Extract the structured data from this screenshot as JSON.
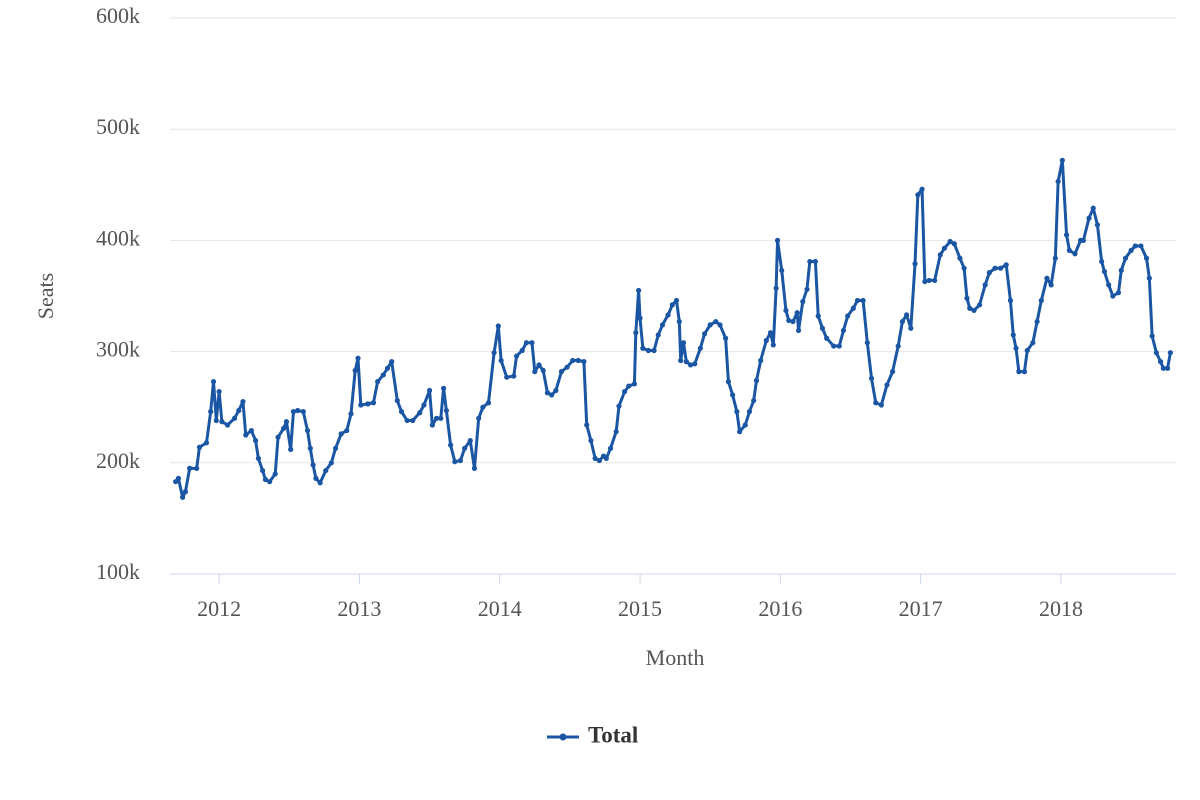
{
  "chart_data": {
    "type": "line",
    "x_label": "Month",
    "y_label": "Seats",
    "xlim": [
      2011.65,
      2018.82
    ],
    "xticks": [
      2012,
      2013,
      2014,
      2015,
      2016,
      2017,
      2018
    ],
    "ylim": [
      100000,
      600000
    ],
    "yticks": [
      {
        "value": 100000,
        "label": "100k"
      },
      {
        "value": 200000,
        "label": "200k"
      },
      {
        "value": 300000,
        "label": "300k"
      },
      {
        "value": 400000,
        "label": "400k"
      },
      {
        "value": 500000,
        "label": "500k"
      },
      {
        "value": 600000,
        "label": "600k"
      }
    ],
    "grid": true,
    "legend": "bottom",
    "x": [
      2011.69,
      2011.71,
      2011.74,
      2011.76,
      2011.79,
      2011.84,
      2011.86,
      2011.91,
      2011.94,
      2011.96,
      2011.98,
      2012.0,
      2012.02,
      2012.06,
      2012.11,
      2012.14,
      2012.17,
      2012.19,
      2012.23,
      2012.26,
      2012.28,
      2012.31,
      2012.33,
      2012.36,
      2012.4,
      2012.42,
      2012.46,
      2012.48,
      2012.51,
      2012.53,
      2012.56,
      2012.6,
      2012.63,
      2012.65,
      2012.67,
      2012.69,
      2012.72,
      2012.76,
      2012.8,
      2012.83,
      2012.87,
      2012.91,
      2012.94,
      2012.97,
      2012.99,
      2013.01,
      2013.06,
      2013.1,
      2013.13,
      2013.17,
      2013.2,
      2013.23,
      2013.27,
      2013.3,
      2013.34,
      2013.38,
      2013.43,
      2013.46,
      2013.5,
      2013.52,
      2013.55,
      2013.58,
      2013.6,
      2013.62,
      2013.65,
      2013.68,
      2013.72,
      2013.75,
      2013.79,
      2013.82,
      2013.85,
      2013.88,
      2013.92,
      2013.96,
      2013.99,
      2014.01,
      2014.05,
      2014.1,
      2014.12,
      2014.16,
      2014.19,
      2014.23,
      2014.25,
      2014.28,
      2014.31,
      2014.34,
      2014.37,
      2014.4,
      2014.44,
      2014.48,
      2014.52,
      2014.56,
      2014.6,
      2014.62,
      2014.65,
      2014.68,
      2014.71,
      2014.74,
      2014.76,
      2014.79,
      2014.83,
      2014.85,
      2014.89,
      2014.92,
      2014.96,
      2014.97,
      2014.99,
      2015.0,
      2015.02,
      2015.06,
      2015.1,
      2015.13,
      2015.16,
      2015.2,
      2015.23,
      2015.26,
      2015.28,
      2015.29,
      2015.31,
      2015.33,
      2015.36,
      2015.39,
      2015.43,
      2015.46,
      2015.5,
      2015.54,
      2015.57,
      2015.61,
      2015.63,
      2015.66,
      2015.69,
      2015.71,
      2015.75,
      2015.78,
      2015.81,
      2015.83,
      2015.86,
      2015.9,
      2015.93,
      2015.95,
      2015.97,
      2015.98,
      2016.01,
      2016.04,
      2016.06,
      2016.09,
      2016.12,
      2016.13,
      2016.16,
      2016.19,
      2016.21,
      2016.25,
      2016.27,
      2016.3,
      2016.33,
      2016.38,
      2016.42,
      2016.45,
      2016.48,
      2016.52,
      2016.55,
      2016.59,
      2016.62,
      2016.65,
      2016.68,
      2016.72,
      2016.76,
      2016.8,
      2016.84,
      2016.87,
      2016.9,
      2016.93,
      2016.96,
      2016.98,
      2017.01,
      2017.03,
      2017.06,
      2017.1,
      2017.14,
      2017.17,
      2017.21,
      2017.24,
      2017.28,
      2017.31,
      2017.33,
      2017.35,
      2017.38,
      2017.42,
      2017.46,
      2017.49,
      2017.53,
      2017.57,
      2017.61,
      2017.64,
      2017.66,
      2017.68,
      2017.7,
      2017.74,
      2017.76,
      2017.8,
      2017.83,
      2017.86,
      2017.9,
      2017.93,
      2017.96,
      2017.98,
      2018.01,
      2018.04,
      2018.06,
      2018.1,
      2018.14,
      2018.16,
      2018.2,
      2018.23,
      2018.26,
      2018.29,
      2018.31,
      2018.34,
      2018.37,
      2018.41,
      2018.43,
      2018.46,
      2018.5,
      2018.53,
      2018.57,
      2018.61,
      2018.63,
      2018.65,
      2018.68,
      2018.71,
      2018.73,
      2018.76,
      2018.78
    ],
    "series": [
      {
        "name": "Total",
        "color": "#1a56a3",
        "values": [
          183000,
          186000,
          169000,
          174000,
          195000,
          195000,
          214000,
          218000,
          246000,
          273000,
          238000,
          264000,
          237000,
          234000,
          240000,
          247000,
          255000,
          225000,
          229000,
          220000,
          204000,
          193000,
          185000,
          183000,
          190000,
          223000,
          231000,
          237000,
          212000,
          246000,
          247000,
          246000,
          229000,
          213000,
          198000,
          186000,
          182000,
          193000,
          200000,
          213000,
          226000,
          229000,
          244000,
          283000,
          294000,
          252000,
          253000,
          254000,
          273000,
          279000,
          285000,
          291000,
          256000,
          246000,
          238000,
          238000,
          245000,
          252000,
          265000,
          234000,
          240000,
          240000,
          267000,
          247000,
          216000,
          201000,
          202000,
          213000,
          220000,
          195000,
          240000,
          250000,
          254000,
          299000,
          323000,
          292000,
          277000,
          278000,
          296000,
          301000,
          308000,
          308000,
          282000,
          288000,
          283000,
          263000,
          261000,
          265000,
          282000,
          286000,
          292000,
          292000,
          291000,
          234000,
          220000,
          204000,
          202000,
          206000,
          204000,
          213000,
          228000,
          251000,
          264000,
          269000,
          271000,
          317000,
          355000,
          330000,
          303000,
          301000,
          301000,
          315000,
          324000,
          333000,
          342000,
          346000,
          327000,
          292000,
          308000,
          291000,
          288000,
          289000,
          303000,
          316000,
          324000,
          327000,
          324000,
          312000,
          273000,
          261000,
          246000,
          228000,
          234000,
          246000,
          256000,
          274000,
          292000,
          310000,
          317000,
          306000,
          357000,
          400000,
          373000,
          337000,
          328000,
          327000,
          335000,
          319000,
          345000,
          356000,
          381000,
          381000,
          332000,
          321000,
          312000,
          305000,
          305000,
          319000,
          332000,
          339000,
          346000,
          346000,
          308000,
          276000,
          254000,
          252000,
          270000,
          282000,
          305000,
          327000,
          333000,
          321000,
          379000,
          441000,
          446000,
          363000,
          364000,
          364000,
          387000,
          393000,
          399000,
          397000,
          384000,
          375000,
          348000,
          339000,
          337000,
          342000,
          360000,
          371000,
          375000,
          375000,
          378000,
          346000,
          315000,
          303000,
          282000,
          282000,
          301000,
          308000,
          327000,
          346000,
          366000,
          360000,
          384000,
          453000,
          472000,
          405000,
          391000,
          388000,
          400000,
          400000,
          420000,
          429000,
          414000,
          381000,
          372000,
          360000,
          350000,
          353000,
          373000,
          384000,
          391000,
          395000,
          395000,
          384000,
          366000,
          314000,
          299000,
          291000,
          285000,
          285000,
          299000
        ]
      }
    ]
  }
}
